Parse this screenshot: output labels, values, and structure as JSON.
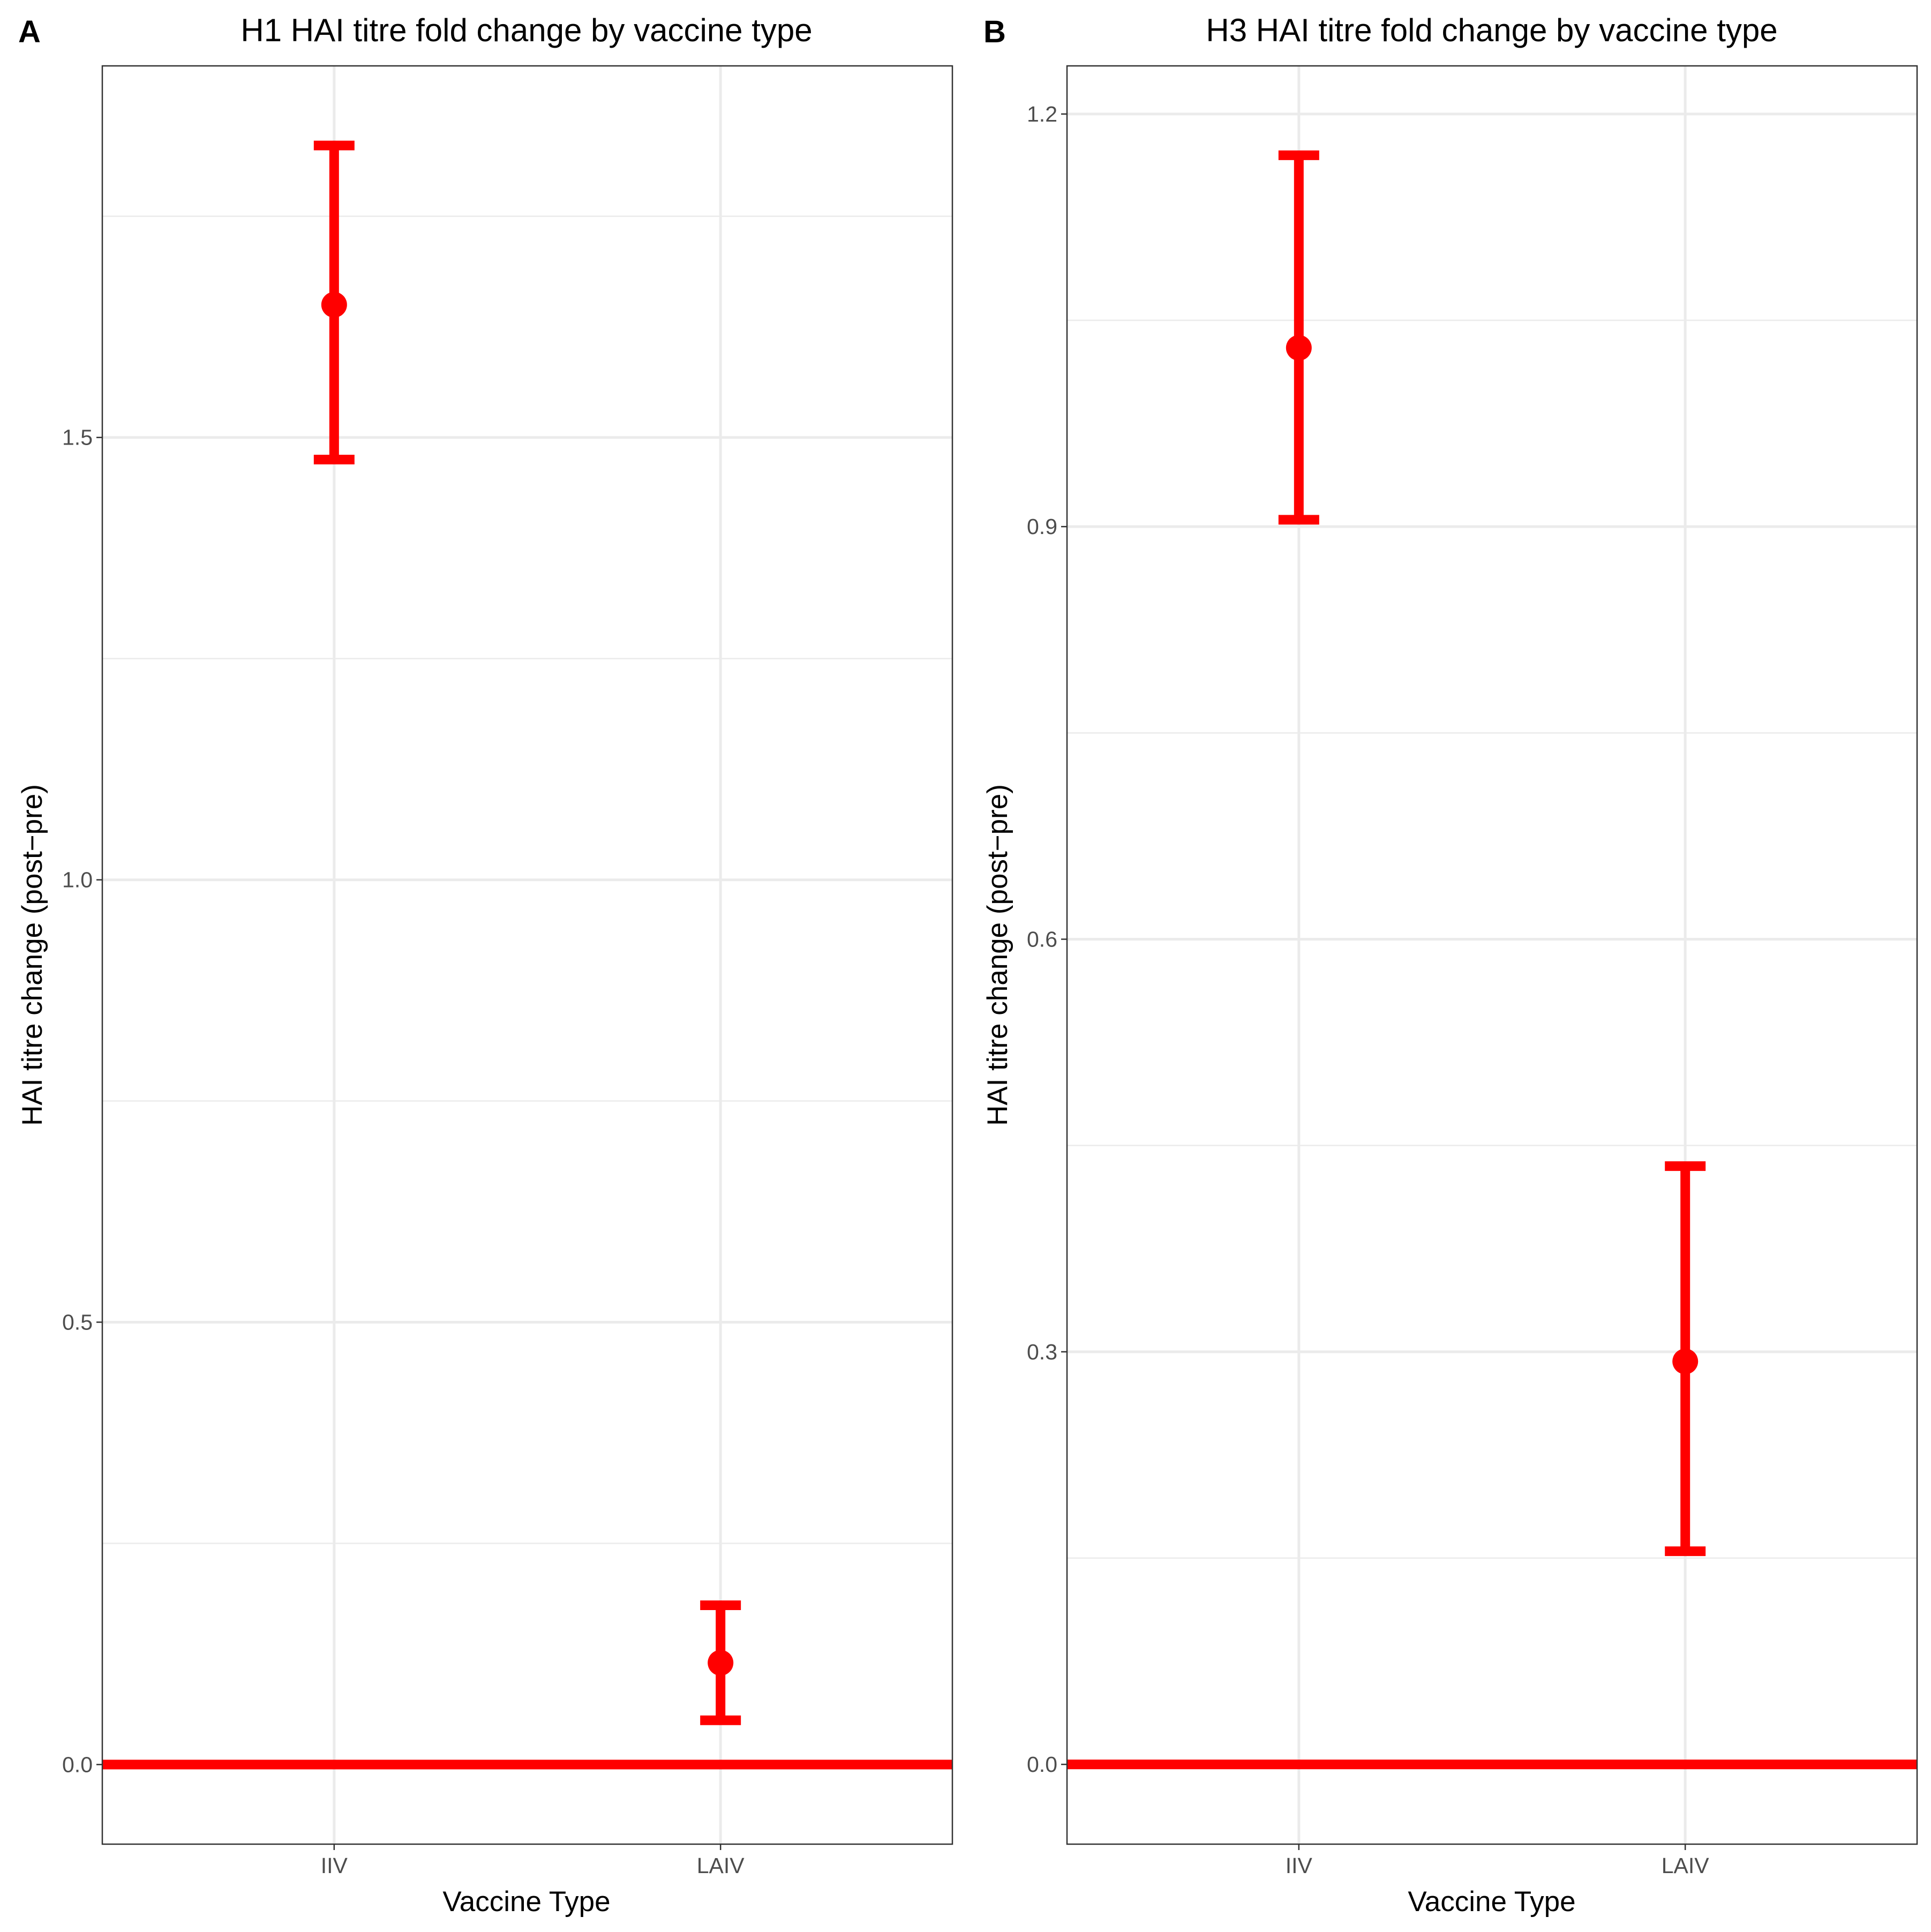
{
  "figure": {
    "accent_color": "#ff0000"
  },
  "chart_data": [
    {
      "type": "errorbar",
      "panel_label": "A",
      "title": "H1 HAI titre fold change by vaccine type",
      "xlabel": "Vaccine Type",
      "ylabel": "HAI titre change (post−pre)",
      "categories": [
        "IIV",
        "LAIV"
      ],
      "means": [
        1.65,
        0.115
      ],
      "lower": [
        1.475,
        0.05
      ],
      "upper": [
        1.83,
        0.18
      ],
      "ylim": [
        -0.09,
        1.92
      ],
      "yticks": [
        0.0,
        0.5,
        1.0,
        1.5
      ],
      "ytick_labels": [
        "0.0",
        "0.5",
        "1.0",
        "1.5"
      ],
      "yminor": [
        0.25,
        0.75,
        1.25,
        1.75
      ],
      "reference_line": 0.0,
      "grid": true,
      "color": "#ff0000"
    },
    {
      "type": "errorbar",
      "panel_label": "B",
      "title": "H3 HAI titre fold change by vaccine type",
      "xlabel": "Vaccine Type",
      "ylabel": "HAI titre change (post−pre)",
      "categories": [
        "IIV",
        "LAIV"
      ],
      "means": [
        1.03,
        0.293
      ],
      "lower": [
        0.905,
        0.155
      ],
      "upper": [
        1.17,
        0.435
      ],
      "ylim": [
        -0.058,
        1.235
      ],
      "yticks": [
        0.0,
        0.3,
        0.6,
        0.9,
        1.2
      ],
      "ytick_labels": [
        "0.0",
        "0.3",
        "0.6",
        "0.9",
        "1.2"
      ],
      "yminor": [
        0.15,
        0.45,
        0.75,
        1.05
      ],
      "reference_line": 0.0,
      "grid": true,
      "color": "#ff0000"
    }
  ]
}
